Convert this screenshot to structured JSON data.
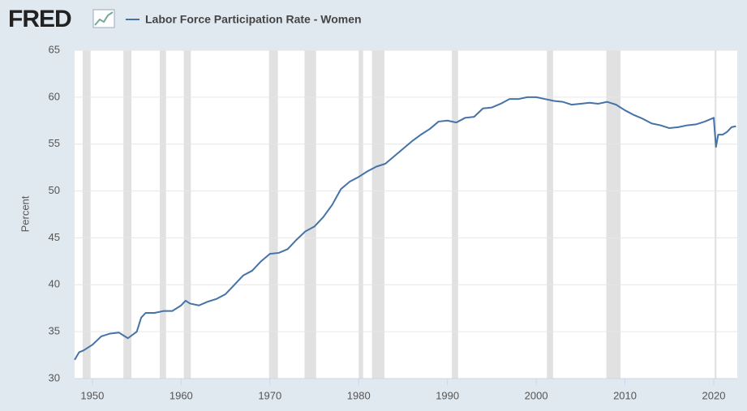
{
  "logo": "FRED",
  "chart_data": {
    "type": "line",
    "y_label": "Percent",
    "x": [
      1948,
      1948.5,
      1949,
      1950,
      1951,
      1952,
      1953,
      1954,
      1955,
      1955.5,
      1956,
      1957,
      1958,
      1959,
      1960,
      1960.5,
      1961,
      1962,
      1963,
      1964,
      1965,
      1966,
      1967,
      1968,
      1969,
      1970,
      1971,
      1972,
      1973,
      1974,
      1975,
      1976,
      1977,
      1978,
      1979,
      1980,
      1981,
      1982,
      1983,
      1984,
      1985,
      1986,
      1987,
      1988,
      1989,
      1990,
      1991,
      1992,
      1993,
      1994,
      1995,
      1996,
      1997,
      1998,
      1999,
      2000,
      2001,
      2002,
      2003,
      2004,
      2005,
      2006,
      2007,
      2008,
      2009,
      2010,
      2011,
      2012,
      2013,
      2014,
      2015,
      2016,
      2017,
      2018,
      2019,
      2020,
      2020.25,
      2020.5,
      2021,
      2021.5,
      2022,
      2022.5
    ],
    "series": [
      {
        "name": "Labor Force Participation Rate - Women",
        "color": "#4572a7",
        "values": [
          32.0,
          32.8,
          33.0,
          33.6,
          34.5,
          34.8,
          34.9,
          34.3,
          35.0,
          36.5,
          37.0,
          37.0,
          37.2,
          37.2,
          37.8,
          38.3,
          38.0,
          37.8,
          38.2,
          38.5,
          39.0,
          40.0,
          41.0,
          41.5,
          42.5,
          43.3,
          43.4,
          43.8,
          44.8,
          45.7,
          46.2,
          47.2,
          48.5,
          50.2,
          51.0,
          51.5,
          52.1,
          52.6,
          52.9,
          53.7,
          54.5,
          55.3,
          56.0,
          56.6,
          57.4,
          57.5,
          57.3,
          57.8,
          57.9,
          58.8,
          58.9,
          59.3,
          59.8,
          59.8,
          60.0,
          60.0,
          59.8,
          59.6,
          59.5,
          59.2,
          59.3,
          59.4,
          59.3,
          59.5,
          59.2,
          58.6,
          58.1,
          57.7,
          57.2,
          57.0,
          56.7,
          56.8,
          57.0,
          57.1,
          57.4,
          57.8,
          54.7,
          56.0,
          56.0,
          56.3,
          56.8,
          56.9
        ]
      }
    ],
    "recessions": [
      [
        1948.9,
        1949.8
      ],
      [
        1953.5,
        1954.4
      ],
      [
        1957.6,
        1958.3
      ],
      [
        1960.3,
        1961.1
      ],
      [
        1969.9,
        1970.9
      ],
      [
        1973.9,
        1975.2
      ],
      [
        1980.0,
        1980.5
      ],
      [
        1981.5,
        1982.9
      ],
      [
        1990.5,
        1991.2
      ],
      [
        2001.2,
        2001.9
      ],
      [
        2007.9,
        2009.5
      ],
      [
        2020.1,
        2020.3
      ]
    ],
    "recession_color": "#e1e1e1",
    "xlim": [
      1948,
      2022.65
    ],
    "xticks": [
      1950,
      1960,
      1970,
      1980,
      1990,
      2000,
      2010,
      2020
    ],
    "ylim": [
      30,
      65
    ],
    "yticks": [
      30,
      35,
      40,
      45,
      50,
      55,
      60,
      65
    ],
    "grid": true
  }
}
